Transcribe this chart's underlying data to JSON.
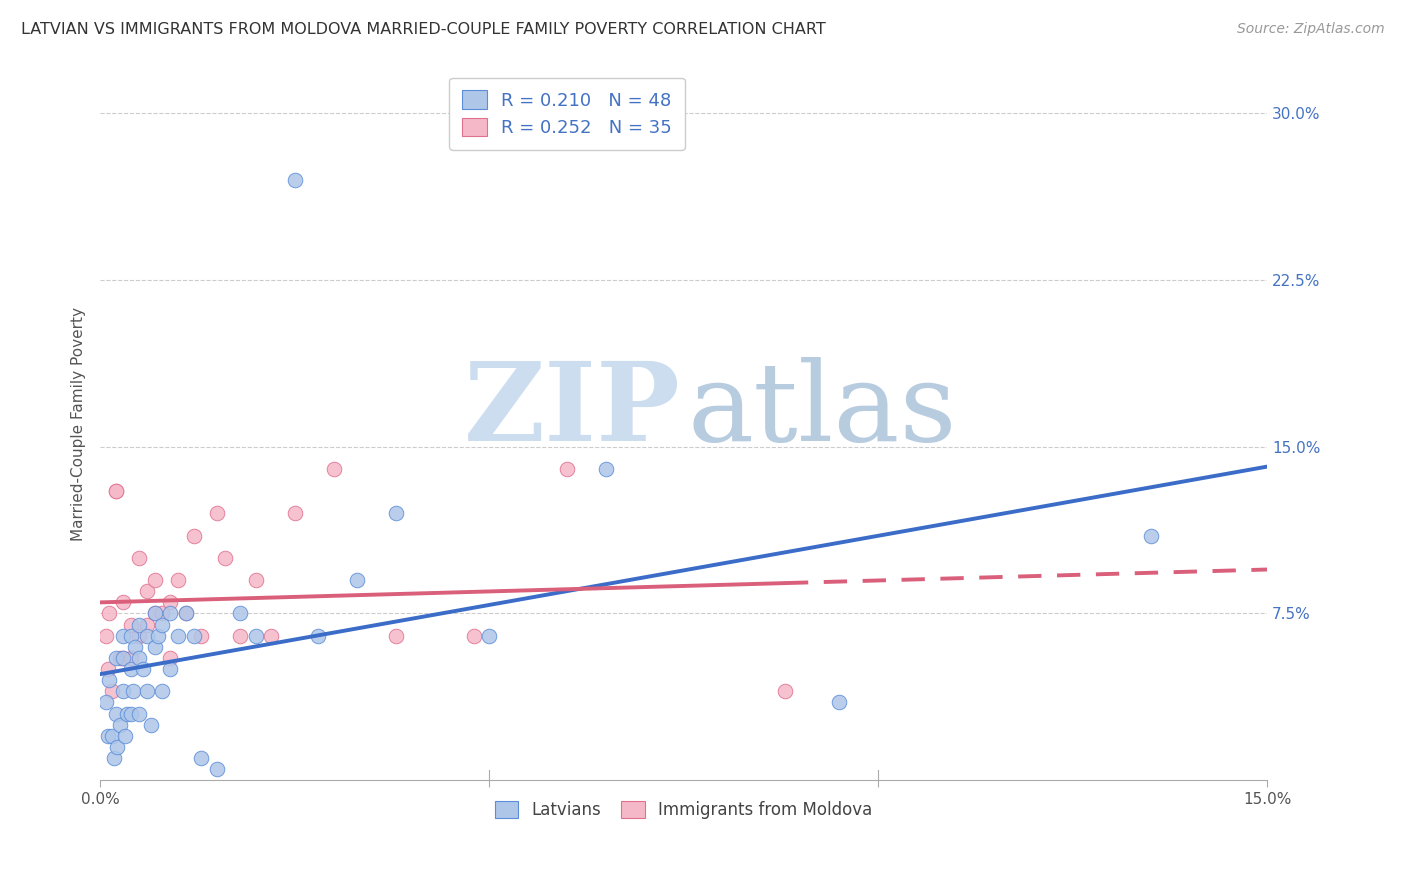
{
  "title": "LATVIAN VS IMMIGRANTS FROM MOLDOVA MARRIED-COUPLE FAMILY POVERTY CORRELATION CHART",
  "source": "Source: ZipAtlas.com",
  "ylabel": "Married-Couple Family Poverty",
  "xlim": [
    0.0,
    0.15
  ],
  "ylim": [
    0.0,
    0.32
  ],
  "xticks": [
    0.0,
    0.05,
    0.1,
    0.15
  ],
  "xticklabels": [
    "0.0%",
    "",
    "",
    "15.0%"
  ],
  "yticks_right": [
    0.0,
    0.075,
    0.15,
    0.225,
    0.3
  ],
  "yticklabels_right": [
    "",
    "7.5%",
    "15.0%",
    "22.5%",
    "30.0%"
  ],
  "color_latvian_fill": "#aec6e8",
  "color_latvian_edge": "#5b8dd9",
  "color_moldova_fill": "#f5b8c8",
  "color_moldova_edge": "#e07090",
  "color_line_latvian": "#3a6cc8",
  "color_line_moldova": "#d95f7a",
  "color_text_blue": "#4472c4",
  "latvian_x": [
    0.0008,
    0.001,
    0.0012,
    0.0015,
    0.0018,
    0.002,
    0.002,
    0.0022,
    0.0025,
    0.003,
    0.003,
    0.003,
    0.0032,
    0.0035,
    0.004,
    0.004,
    0.004,
    0.0042,
    0.0045,
    0.005,
    0.005,
    0.005,
    0.0055,
    0.006,
    0.006,
    0.0065,
    0.007,
    0.007,
    0.0075,
    0.008,
    0.008,
    0.009,
    0.009,
    0.01,
    0.011,
    0.012,
    0.013,
    0.015,
    0.018,
    0.02,
    0.025,
    0.028,
    0.033,
    0.038,
    0.05,
    0.065,
    0.095,
    0.135
  ],
  "latvian_y": [
    0.035,
    0.02,
    0.045,
    0.02,
    0.01,
    0.03,
    0.055,
    0.015,
    0.025,
    0.04,
    0.055,
    0.065,
    0.02,
    0.03,
    0.05,
    0.065,
    0.03,
    0.04,
    0.06,
    0.055,
    0.07,
    0.03,
    0.05,
    0.065,
    0.04,
    0.025,
    0.06,
    0.075,
    0.065,
    0.07,
    0.04,
    0.05,
    0.075,
    0.065,
    0.075,
    0.065,
    0.01,
    0.005,
    0.075,
    0.065,
    0.27,
    0.065,
    0.09,
    0.12,
    0.065,
    0.14,
    0.035,
    0.11
  ],
  "moldova_x": [
    0.0008,
    0.001,
    0.0012,
    0.0015,
    0.002,
    0.002,
    0.0025,
    0.003,
    0.003,
    0.004,
    0.004,
    0.005,
    0.005,
    0.006,
    0.006,
    0.007,
    0.007,
    0.008,
    0.009,
    0.009,
    0.01,
    0.011,
    0.012,
    0.013,
    0.015,
    0.016,
    0.018,
    0.02,
    0.022,
    0.025,
    0.03,
    0.038,
    0.048,
    0.06,
    0.088
  ],
  "moldova_y": [
    0.065,
    0.05,
    0.075,
    0.04,
    0.13,
    0.13,
    0.055,
    0.08,
    0.055,
    0.07,
    0.055,
    0.1,
    0.065,
    0.07,
    0.085,
    0.075,
    0.09,
    0.075,
    0.055,
    0.08,
    0.09,
    0.075,
    0.11,
    0.065,
    0.12,
    0.1,
    0.065,
    0.09,
    0.065,
    0.12,
    0.14,
    0.065,
    0.065,
    0.14,
    0.04
  ],
  "dot_size": 110,
  "line_width": 2.8,
  "watermark_zip_color": "#ccddf0",
  "watermark_atlas_color": "#b8cce0"
}
